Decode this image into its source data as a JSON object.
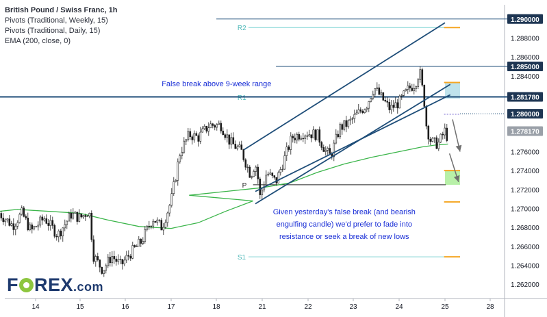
{
  "legend": {
    "title": "British Pound / Swiss Franc, 1h",
    "line1": "Pivots (Traditional, Weekly, 15)",
    "line2": "Pivots (Traditional, Daily, 15)",
    "line3": "EMA (200, close, 0)"
  },
  "logo": {
    "part1": "F",
    "part2": "REX",
    "part3": ".com"
  },
  "chart_data": {
    "type": "candlestick",
    "instrument": "British Pound / Swiss Franc",
    "timeframe": "1h",
    "x_ticks": [
      "14",
      "15",
      "16",
      "17",
      "18",
      "21",
      "22",
      "23",
      "24",
      "25",
      "28"
    ],
    "ylim": [
      1.2605,
      1.2915
    ],
    "y_ticks": [
      "1.262000",
      "1.264000",
      "1.266000",
      "1.268000",
      "1.270000",
      "1.272000",
      "1.274000",
      "1.276000",
      "1.278000",
      "1.280000",
      "1.282000",
      "1.284000",
      "1.286000",
      "1.288000",
      "1.290000"
    ],
    "price_tags": [
      {
        "label": "1.290000",
        "value": 1.29,
        "style": "dark"
      },
      {
        "label": "1.285000",
        "value": 1.285,
        "style": "dark"
      },
      {
        "label": "1.281780",
        "value": 1.28178,
        "style": "dark"
      },
      {
        "label": "1.280000",
        "value": 1.28,
        "style": "dark"
      },
      {
        "label": "1.278170",
        "value": 1.27817,
        "style": "grey"
      }
    ],
    "horizontal_lines": [
      {
        "value": 1.29,
        "from": 18.0,
        "to": 28.8,
        "color": "#1f4e79"
      },
      {
        "value": 1.285,
        "from": 21.3,
        "to": 28.8,
        "color": "#1f4e79"
      },
      {
        "value": 1.28178,
        "from": 13.2,
        "to": 28.8,
        "color": "#1f4e79",
        "width": 2
      }
    ],
    "pivots_weekly": [
      {
        "label": "R2",
        "value": 1.2891,
        "from": 18.7,
        "to": 25.05,
        "color": "#7fd3d3"
      },
      {
        "label": "R1",
        "value": 1.28175,
        "from": 18.7,
        "to": 25.05,
        "color": "#7fd3d3"
      },
      {
        "label": "P",
        "value": 1.2725,
        "from": 20.8,
        "to": 25.05,
        "color": "#222222"
      },
      {
        "label": "S1",
        "value": 1.2649,
        "from": 18.7,
        "to": 25.05,
        "color": "#7fd3d3"
      }
    ],
    "pivots_daily": [
      {
        "value": 1.2891,
        "color": "#f5a623"
      },
      {
        "value": 1.2833,
        "color": "#f5a623"
      },
      {
        "value": 1.27995,
        "color": "#6a5acd",
        "dotted": true
      },
      {
        "value": 1.274,
        "color": "#f5a623"
      },
      {
        "value": 1.2707,
        "color": "#f5a623"
      },
      {
        "value": 1.2649,
        "color": "#f5a623"
      }
    ],
    "zones": [
      {
        "from_value": 1.28335,
        "to_value": 1.2816,
        "from": 25.0,
        "to": 26.0,
        "color": "#bfe3ec"
      },
      {
        "from_value": 1.274,
        "to_value": 1.2725,
        "from": 25.0,
        "to": 26.0,
        "color": "#b8f0a8"
      }
    ],
    "channel": {
      "upper": [
        [
          18.6,
          1.2762
        ],
        [
          25.0,
          1.2896
        ]
      ],
      "lower": [
        [
          20.85,
          1.2705
        ],
        [
          25.35,
          1.2831
        ]
      ],
      "mid": [
        [
          20.85,
          1.2718
        ],
        [
          25.35,
          1.282
        ]
      ]
    },
    "arrows": [
      {
        "from": [
          25.5,
          1.2794
        ],
        "to": [
          26.0,
          1.276
        ]
      },
      {
        "from": [
          25.3,
          1.2758
        ],
        "to": [
          25.9,
          1.2728
        ]
      }
    ],
    "annotations": [
      {
        "text": "False break above 9-week range",
        "x": 20.0,
        "y": 1.2829
      },
      {
        "text": "Given yesterday's false break (and bearish",
        "x": 22.8,
        "y": 1.2694
      },
      {
        "text": "engulfing candle) we'd prefer to fade into",
        "x": 22.8,
        "y": 1.2681
      },
      {
        "text": "resistance or seek a break of new lows",
        "x": 22.8,
        "y": 1.2668
      }
    ],
    "ema200": [
      [
        13.2,
        1.2697
      ],
      [
        13.6,
        1.2699
      ],
      [
        14.3,
        1.2697
      ],
      [
        15.0,
        1.2695
      ],
      [
        15.6,
        1.2688
      ],
      [
        16.3,
        1.2681
      ],
      [
        17.0,
        1.2679
      ],
      [
        17.6,
        1.2685
      ],
      [
        18.2,
        1.2697
      ],
      [
        18.8,
        1.2708
      ],
      [
        19.4,
        1.2714
      ],
      [
        20.2,
        1.2718
      ],
      [
        21.0,
        1.2722
      ],
      [
        21.6,
        1.2727
      ],
      [
        22.2,
        1.2738
      ],
      [
        22.8,
        1.2747
      ],
      [
        23.4,
        1.2754
      ],
      [
        24.0,
        1.276
      ],
      [
        24.5,
        1.2765
      ],
      [
        24.8,
        1.2767
      ],
      [
        25.2,
        1.2768
      ]
    ],
    "price_path": [
      [
        13.2,
        1.2695
      ],
      [
        13.5,
        1.2682
      ],
      [
        13.7,
        1.2695
      ],
      [
        13.9,
        1.2676
      ],
      [
        14.2,
        1.269
      ],
      [
        14.5,
        1.2672
      ],
      [
        14.8,
        1.2694
      ],
      [
        15.0,
        1.269
      ],
      [
        15.2,
        1.2698
      ],
      [
        15.3,
        1.265
      ],
      [
        15.5,
        1.2635
      ],
      [
        15.7,
        1.265
      ],
      [
        15.9,
        1.264
      ],
      [
        16.1,
        1.2652
      ],
      [
        16.35,
        1.2665
      ],
      [
        16.6,
        1.269
      ],
      [
        16.8,
        1.268
      ],
      [
        17.0,
        1.2708
      ],
      [
        17.2,
        1.276
      ],
      [
        17.4,
        1.2778
      ],
      [
        17.6,
        1.2775
      ],
      [
        17.85,
        1.2788
      ],
      [
        18.1,
        1.2788
      ],
      [
        18.3,
        1.277
      ],
      [
        18.55,
        1.276
      ],
      [
        18.75,
        1.2735
      ],
      [
        18.85,
        1.2748
      ],
      [
        20.9,
        1.2735
      ],
      [
        20.95,
        1.2712
      ],
      [
        21.1,
        1.2738
      ],
      [
        21.3,
        1.2728
      ],
      [
        21.45,
        1.2748
      ],
      [
        21.65,
        1.2775
      ],
      [
        21.9,
        1.278
      ],
      [
        22.2,
        1.2778
      ],
      [
        22.4,
        1.276
      ],
      [
        22.5,
        1.2755
      ],
      [
        22.7,
        1.2785
      ],
      [
        22.9,
        1.279
      ],
      [
        23.1,
        1.28
      ],
      [
        23.3,
        1.281
      ],
      [
        23.45,
        1.2828
      ],
      [
        23.6,
        1.2818
      ],
      [
        23.8,
        1.2805
      ],
      [
        24.0,
        1.2812
      ],
      [
        24.2,
        1.2826
      ],
      [
        24.35,
        1.2832
      ],
      [
        24.45,
        1.2845
      ],
      [
        24.55,
        1.2812
      ],
      [
        24.6,
        1.2785
      ],
      [
        24.7,
        1.277
      ],
      [
        24.85,
        1.2768
      ],
      [
        25.0,
        1.2782
      ],
      [
        25.1,
        1.2775
      ],
      [
        25.2,
        1.278
      ]
    ]
  }
}
